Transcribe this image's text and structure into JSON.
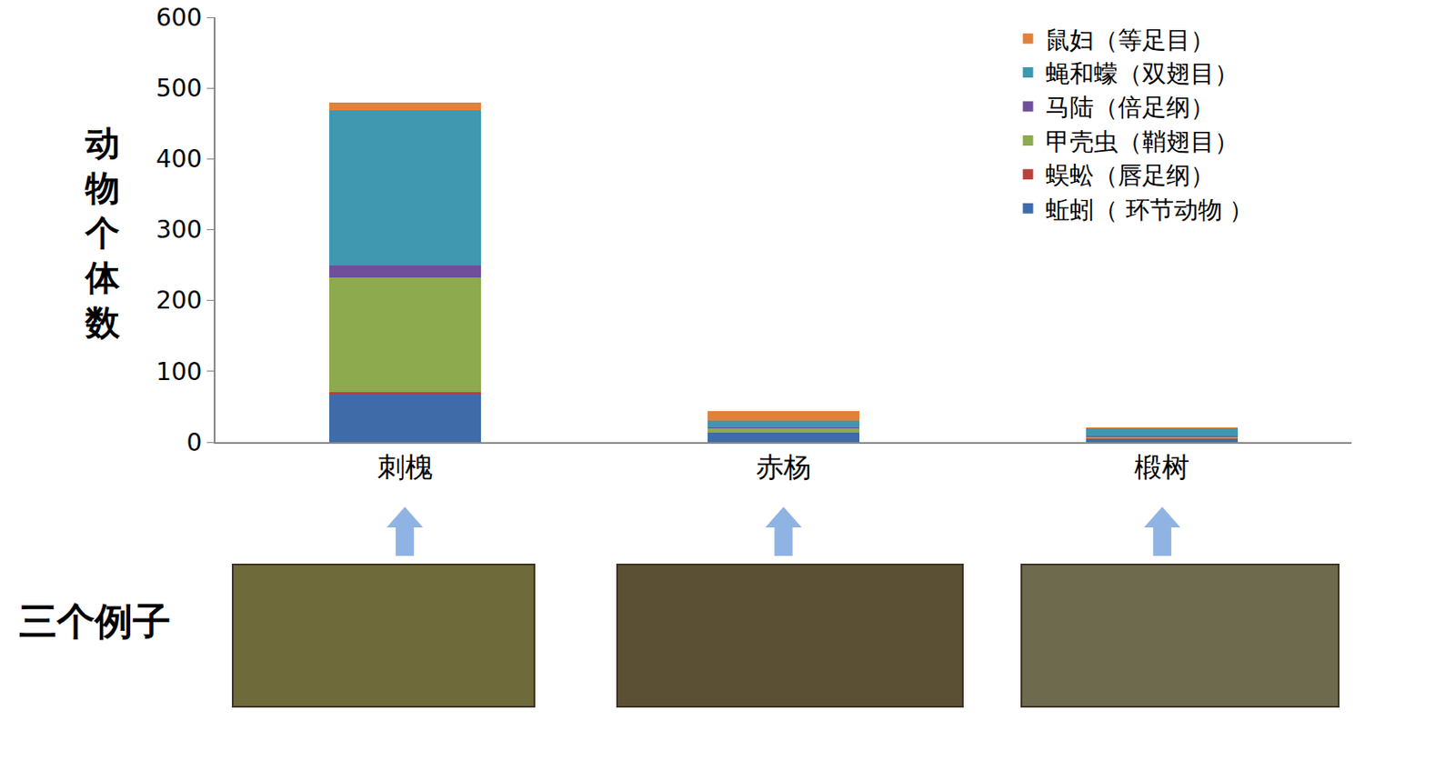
{
  "chart_data": {
    "type": "bar",
    "stacked": true,
    "ylabel": "动物个体数",
    "annotations": [
      "三个例子"
    ],
    "categories": [
      "刺槐",
      "赤杨",
      "椴树"
    ],
    "series": [
      {
        "name": "蚯蚓（ 环节动物 ）",
        "color": "#3F6CA8",
        "values": [
          67,
          13,
          4
        ]
      },
      {
        "name": "蜈蚣（唇足纲）",
        "color": "#B9403F",
        "values": [
          3,
          1,
          1
        ]
      },
      {
        "name": "甲壳虫（鞘翅目）",
        "color": "#8DAA4E",
        "values": [
          162,
          6,
          2
        ]
      },
      {
        "name": "马陆（倍足纲）",
        "color": "#6F4F9A",
        "values": [
          18,
          1,
          1
        ]
      },
      {
        "name": "蝇和蠓（双翅目）",
        "color": "#3F97B0",
        "values": [
          218,
          9,
          11
        ]
      },
      {
        "name": "鼠妇（等足目）",
        "color": "#E0823D",
        "values": [
          12,
          14,
          2
        ]
      }
    ],
    "ylim": [
      0,
      600
    ],
    "yticks": [
      0,
      100,
      200,
      300,
      400,
      500,
      600
    ],
    "grid": false,
    "legend": "upper right"
  }
}
